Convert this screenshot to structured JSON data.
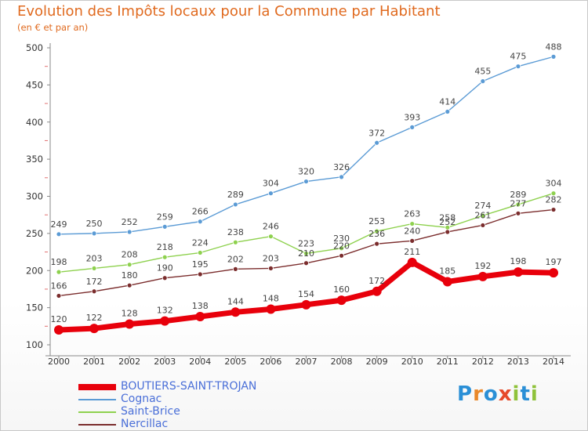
{
  "header": {
    "title": "Evolution des Impôts locaux pour la Commune par Habitant",
    "subtitle": "(en € et par an)"
  },
  "brand": {
    "letters": [
      "P",
      "r",
      "o",
      "x",
      "i",
      "t",
      "i"
    ],
    "colors": [
      "#2a8fd6",
      "#e9882a",
      "#2a8fd6",
      "#e64a2a",
      "#8fc23a",
      "#2a8fd6",
      "#8fc23a"
    ]
  },
  "chart_data": {
    "type": "line",
    "title": "Evolution des Impôts locaux pour la Commune par Habitant",
    "subtitle": "(en € et par an)",
    "xlabel": "",
    "ylabel": "",
    "x": [
      "2000",
      "2001",
      "2002",
      "2003",
      "2004",
      "2005",
      "2006",
      "2007",
      "2008",
      "2009",
      "2010",
      "2011",
      "2012",
      "2013",
      "2014"
    ],
    "ylim": [
      100,
      500
    ],
    "yticks": [
      100,
      150,
      200,
      250,
      300,
      350,
      400,
      450,
      500
    ],
    "grid": false,
    "legend_position": "bottom-left",
    "series": [
      {
        "name": "BOUTIERS-SAINT-TROJAN",
        "color": "#e8000b",
        "values": [
          120,
          122,
          128,
          132,
          138,
          144,
          148,
          154,
          160,
          172,
          211,
          185,
          192,
          198,
          197
        ]
      },
      {
        "name": "Cognac",
        "color": "#5b9bd5",
        "values": [
          249,
          250,
          252,
          259,
          266,
          289,
          304,
          320,
          326,
          372,
          393,
          414,
          455,
          475,
          488
        ]
      },
      {
        "name": "Saint-Brice",
        "color": "#8ed14e",
        "values": [
          198,
          203,
          208,
          218,
          224,
          238,
          246,
          223,
          230,
          253,
          263,
          258,
          274,
          289,
          304
        ]
      },
      {
        "name": "Nercillac",
        "color": "#7b2d2d",
        "values": [
          166,
          172,
          180,
          190,
          195,
          202,
          203,
          210,
          220,
          236,
          240,
          252,
          261,
          277,
          282
        ]
      }
    ]
  }
}
